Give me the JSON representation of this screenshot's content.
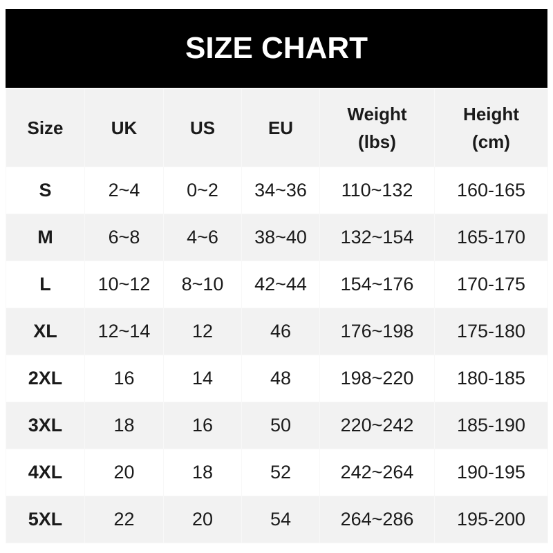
{
  "title": "SIZE CHART",
  "headers": [
    "Size",
    "UK",
    "US",
    "EU",
    "Weight\n(lbs)",
    "Height\n(cm)"
  ],
  "rows": [
    [
      "S",
      "2~4",
      "0~2",
      "34~36",
      "110~132",
      "160-165"
    ],
    [
      "M",
      "6~8",
      "4~6",
      "38~40",
      "132~154",
      "165-170"
    ],
    [
      "L",
      "10~12",
      "8~10",
      "42~44",
      "154~176",
      "170-175"
    ],
    [
      "XL",
      "12~14",
      "12",
      "46",
      "176~198",
      "175-180"
    ],
    [
      "2XL",
      "16",
      "14",
      "48",
      "198~220",
      "180-185"
    ],
    [
      "3XL",
      "18",
      "16",
      "50",
      "220~242",
      "185-190"
    ],
    [
      "4XL",
      "20",
      "18",
      "52",
      "242~264",
      "190-195"
    ],
    [
      "5XL",
      "22",
      "20",
      "54",
      "264~286",
      "195-200"
    ]
  ],
  "colors": {
    "banner": "#000000",
    "header_bg": "#f2f2f2",
    "stripe": "#f2f2f2"
  }
}
